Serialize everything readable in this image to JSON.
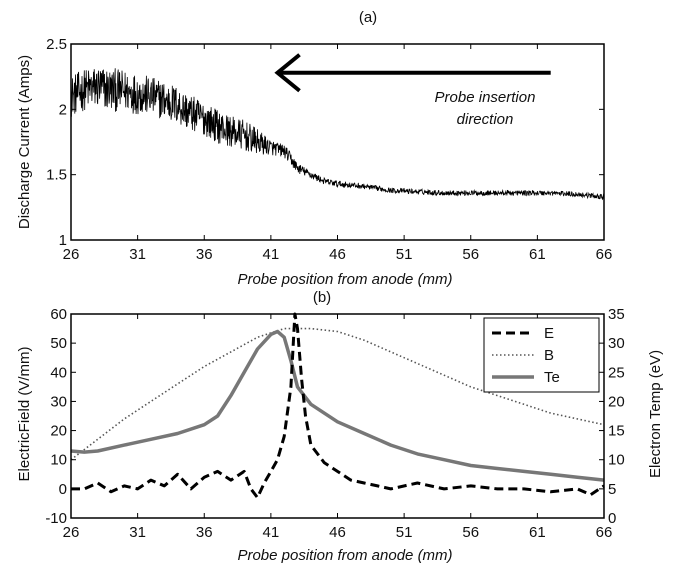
{
  "chart_data": [
    {
      "type": "line",
      "title": "(a)",
      "xlabel": "Probe position from anode (mm)",
      "ylabel": "Discharge Current (Amps)",
      "xlim": [
        26,
        66
      ],
      "ylim": [
        1,
        2.5
      ],
      "xticks": [
        "26",
        "31",
        "36",
        "41",
        "46",
        "51",
        "56",
        "61",
        "66"
      ],
      "yticks": [
        "1",
        "1.5",
        "2",
        "2.5"
      ],
      "annotation": {
        "line1": "Probe insertion",
        "line2": "direction",
        "arrow_from_x": 62,
        "arrow_to_x": 41.5,
        "arrow_y": 2.28
      },
      "series": [
        {
          "x": [
            26,
            27,
            28,
            29,
            30,
            31,
            32,
            33,
            34,
            35,
            36,
            37,
            38,
            39,
            40,
            41,
            42,
            42.5,
            43,
            44,
            45,
            46,
            48,
            50,
            52,
            54,
            56,
            58,
            60,
            62,
            64,
            66
          ],
          "y": [
            2.1,
            2.15,
            2.17,
            2.15,
            2.14,
            2.12,
            2.1,
            2.07,
            2.03,
            1.97,
            1.93,
            1.87,
            1.83,
            1.8,
            1.75,
            1.71,
            1.68,
            1.62,
            1.55,
            1.5,
            1.45,
            1.43,
            1.41,
            1.38,
            1.37,
            1.36,
            1.36,
            1.36,
            1.36,
            1.36,
            1.35,
            1.33
          ],
          "noise": [
            0.16,
            0.16,
            0.17,
            0.17,
            0.16,
            0.16,
            0.15,
            0.15,
            0.15,
            0.14,
            0.13,
            0.13,
            0.12,
            0.12,
            0.1,
            0.06,
            0.05,
            0.05,
            0.04,
            0.03,
            0.025,
            0.025,
            0.02,
            0.02,
            0.02,
            0.02,
            0.02,
            0.02,
            0.02,
            0.02,
            0.02,
            0.02
          ]
        }
      ]
    },
    {
      "type": "line",
      "title": "(b)",
      "xlabel": "Probe position from anode (mm)",
      "ylabel": "ElectricField (V/mm)",
      "y2label": "Electron Temp (eV)",
      "xlim": [
        26,
        66
      ],
      "ylim": [
        -10,
        60
      ],
      "y2lim": [
        0,
        35
      ],
      "xticks": [
        "26",
        "31",
        "36",
        "41",
        "46",
        "51",
        "56",
        "61",
        "66"
      ],
      "yticks": [
        "-10",
        "0",
        "10",
        "20",
        "30",
        "40",
        "50",
        "60"
      ],
      "y2ticks": [
        "0",
        "5",
        "10",
        "15",
        "20",
        "25",
        "30",
        "35"
      ],
      "legend": {
        "position": "top-right",
        "entries": [
          "E",
          "B",
          "Te"
        ]
      },
      "series": [
        {
          "name": "E",
          "style": "dashed",
          "color": "#000000",
          "axis": "left",
          "x": [
            26,
            27,
            28,
            29,
            30,
            31,
            32,
            33,
            34,
            35,
            36,
            37,
            38,
            39,
            39.5,
            40,
            40.5,
            41,
            41.5,
            42,
            42.5,
            42.8,
            43,
            43.3,
            43.6,
            44,
            45,
            46,
            47,
            48,
            49,
            50,
            52,
            54,
            56,
            58,
            60,
            62,
            64,
            65,
            66
          ],
          "y": [
            0,
            0,
            2,
            -1,
            1,
            0,
            3,
            1,
            5,
            0,
            4,
            6,
            3,
            6,
            0,
            -3,
            2,
            6,
            10,
            18,
            35,
            60,
            55,
            38,
            25,
            15,
            9,
            6,
            3,
            2,
            1,
            0,
            2,
            0,
            1,
            0,
            0,
            -1,
            0,
            -2,
            1
          ]
        },
        {
          "name": "B",
          "style": "dotted",
          "color": "#555555",
          "axis": "left",
          "x": [
            26,
            28,
            30,
            32,
            34,
            36,
            38,
            40,
            42,
            44,
            46,
            48,
            50,
            52,
            54,
            56,
            58,
            60,
            62,
            64,
            66
          ],
          "y": [
            10,
            17,
            24,
            30,
            36,
            42,
            47,
            52,
            55,
            55,
            54,
            51,
            47,
            43,
            39,
            35,
            32,
            29,
            26,
            24,
            22
          ]
        },
        {
          "name": "Te",
          "style": "solid",
          "color": "#777777",
          "axis": "right",
          "x": [
            26,
            27,
            28,
            30,
            32,
            34,
            36,
            37,
            38,
            39,
            40,
            41,
            41.5,
            42,
            42.5,
            43,
            44,
            46,
            48,
            50,
            52,
            54,
            56,
            58,
            60,
            62,
            64,
            66
          ],
          "y": [
            11.5,
            11.3,
            11.5,
            12.5,
            13.5,
            14.5,
            16,
            17.5,
            21,
            25,
            29,
            31.5,
            32,
            31,
            27,
            22.5,
            19.5,
            16.5,
            14.5,
            12.5,
            11,
            10,
            9,
            8.5,
            8,
            7.5,
            7,
            6.5
          ]
        }
      ]
    }
  ]
}
